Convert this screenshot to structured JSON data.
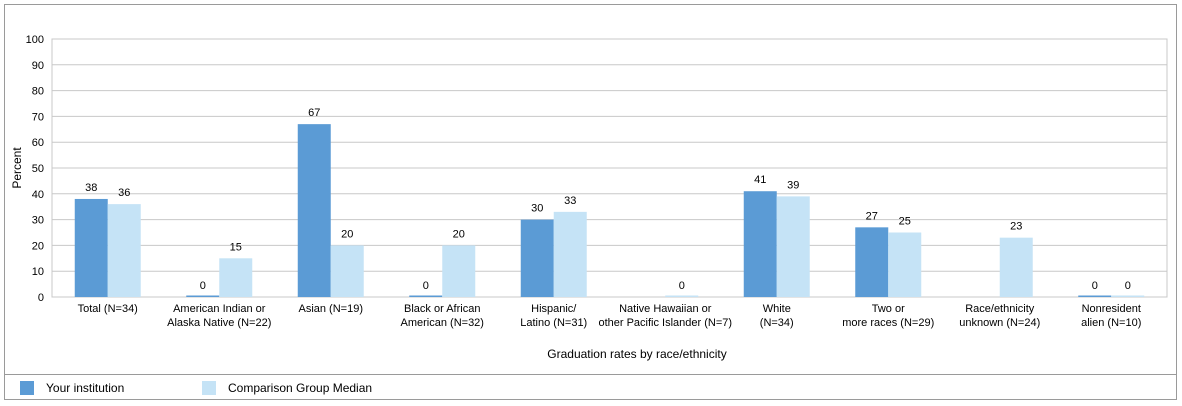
{
  "chart_data": {
    "type": "bar",
    "xlabel": "Graduation rates by race/ethnicity",
    "ylabel": "Percent",
    "ylim": [
      0,
      100
    ],
    "yticks": [
      "0",
      "10",
      "20",
      "30",
      "40",
      "50",
      "60",
      "70",
      "80",
      "90",
      "100"
    ],
    "grid": true,
    "legend_placement": "bottom",
    "categories": [
      [
        "Total (N=34)"
      ],
      [
        "American Indian or",
        "Alaska Native (N=22)"
      ],
      [
        "Asian (N=19)"
      ],
      [
        "Black or African",
        "American (N=32)"
      ],
      [
        "Hispanic/",
        "Latino (N=31)"
      ],
      [
        "Native Hawaiian or",
        "other Pacific Islander (N=7)"
      ],
      [
        "White",
        "(N=34)"
      ],
      [
        "Two or",
        "more races (N=29)"
      ],
      [
        "Race/ethnicity",
        "unknown (N=24)"
      ],
      [
        "Nonresident",
        "alien (N=10)"
      ]
    ],
    "series": [
      {
        "name": "Your institution",
        "color": "#5b9bd5",
        "values": [
          38,
          0,
          67,
          0,
          30,
          null,
          41,
          27,
          null,
          0
        ],
        "labels": [
          "38",
          "0",
          "67",
          "0",
          "30",
          "",
          "41",
          "27",
          "",
          "0"
        ]
      },
      {
        "name": "Comparison Group Median",
        "color": "#c5e3f6",
        "values": [
          36,
          15,
          20,
          20,
          33,
          0,
          39,
          25,
          23,
          0
        ],
        "labels": [
          "36",
          "15",
          "20",
          "20",
          "33",
          "0",
          "39",
          "25",
          "23",
          "0"
        ]
      }
    ]
  }
}
